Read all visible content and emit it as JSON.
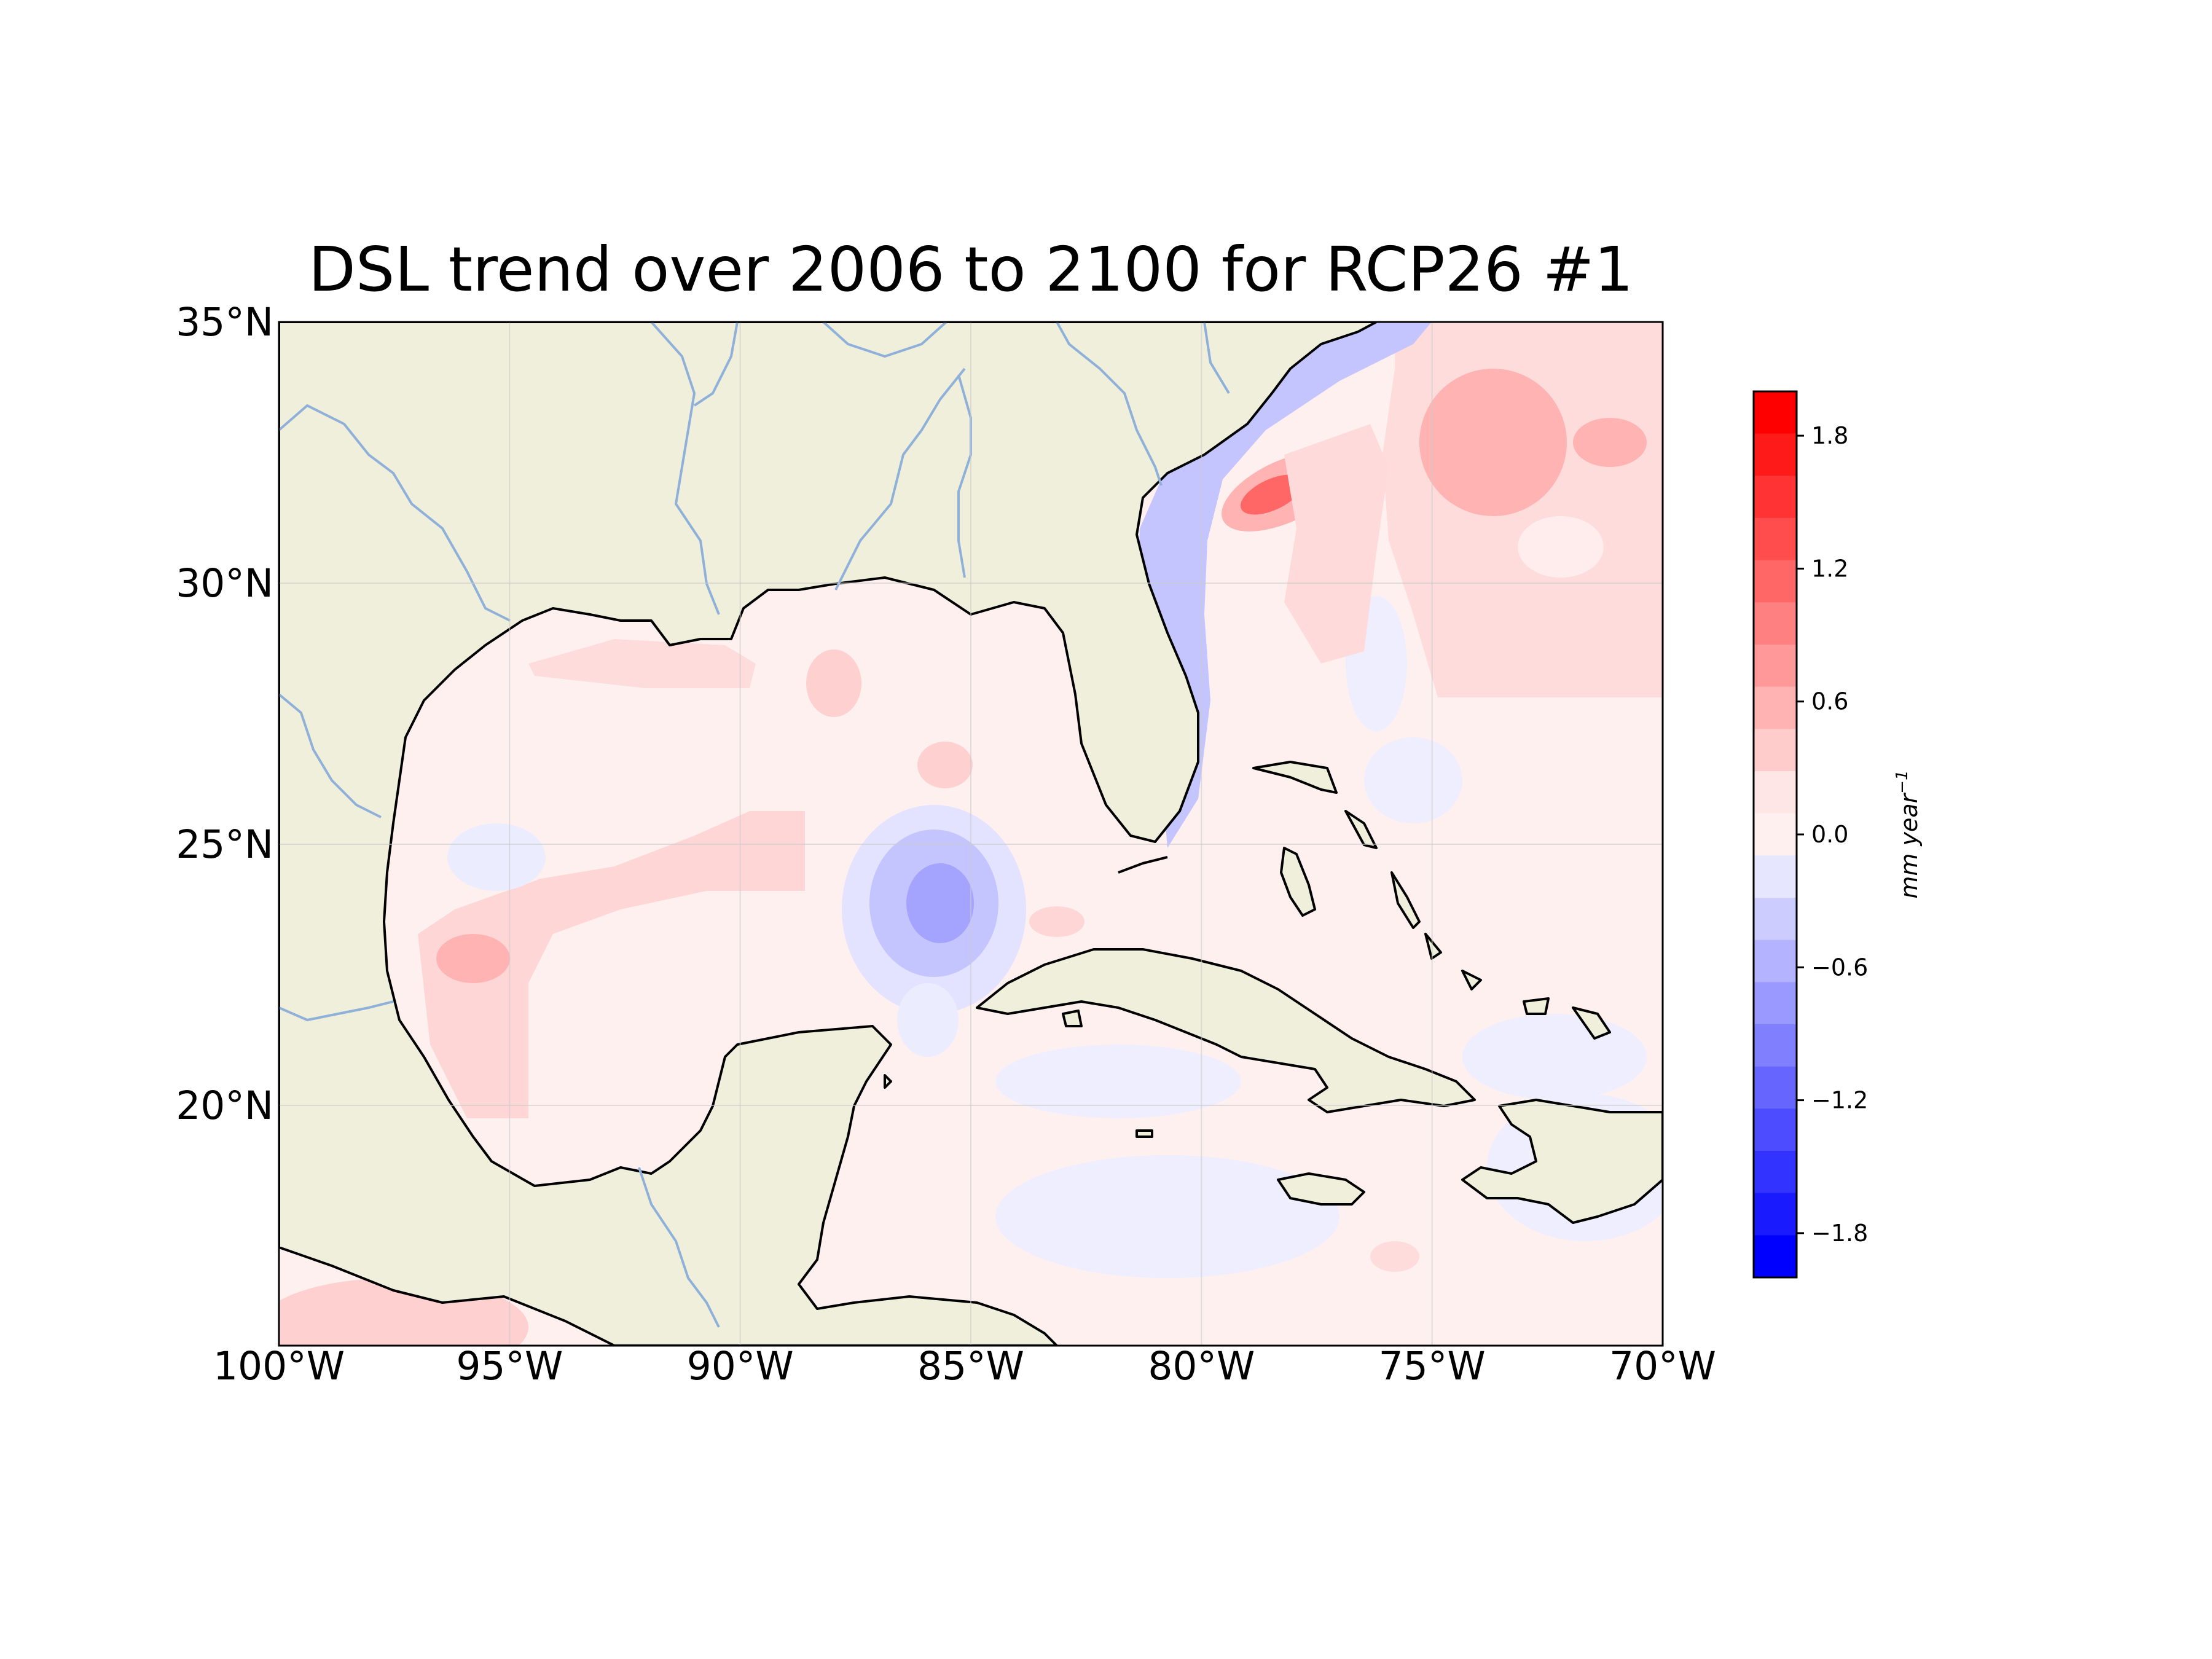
{
  "title": "DSL trend over 2006 to 2100 for RCP26 #1",
  "map": {
    "lon_range": [
      -100,
      -70
    ],
    "lat_range": [
      15.4,
      35
    ],
    "x_tick_labels": [
      "100°W",
      "95°W",
      "90°W",
      "85°W",
      "80°W",
      "75°W",
      "70°W"
    ],
    "x_tick_values": [
      -100,
      -95,
      -90,
      -85,
      -80,
      -75,
      -70
    ],
    "y_tick_labels": [
      "35°N",
      "30°N",
      "25°N",
      "20°N"
    ],
    "y_tick_values": [
      35,
      30,
      25,
      20
    ],
    "land_color": "#efefdb",
    "ocean_base_color": "#fff0f0",
    "river_color": "#8fb0d8",
    "coastline_color": "#000000",
    "gridlines": true
  },
  "colorbar": {
    "label": "mm year",
    "label_superscript": "−1",
    "range": [
      -2.0,
      2.0
    ],
    "step": 0.2,
    "tick_values": [
      1.8,
      1.2,
      0.6,
      0.0,
      -0.6,
      -1.2,
      -1.8
    ],
    "tick_labels": [
      "1.8",
      "1.2",
      "0.6",
      "0.0",
      "−0.6",
      "−1.2",
      "−1.8"
    ],
    "colors_top_to_bottom": [
      "#ff0000",
      "#ff1a1a",
      "#ff3333",
      "#ff4d4d",
      "#ff6666",
      "#ff8080",
      "#ff9999",
      "#ffb3b3",
      "#ffcccc",
      "#ffe6e6",
      "#fff0f0",
      "#e6e6ff",
      "#ccccff",
      "#b3b3ff",
      "#9999ff",
      "#8080ff",
      "#6666ff",
      "#4d4dff",
      "#3333ff",
      "#1a1aff",
      "#0000ff"
    ]
  },
  "chart_data": {
    "type": "heatmap",
    "title": "DSL trend over 2006 to 2100 for RCP26 #1",
    "xlabel": "",
    "ylabel": "",
    "xlim": [
      -100,
      -70
    ],
    "ylim": [
      15.4,
      35
    ],
    "colorbar_label": "mm year^-1",
    "value_range": [
      -2.0,
      2.0
    ],
    "features": [
      {
        "lon": -87.5,
        "lat": 28.7,
        "value": 0.3
      },
      {
        "lon": -91.5,
        "lat": 29.1,
        "value": 0.3
      },
      {
        "lon": -85.6,
        "lat": 26.1,
        "value": 0.3
      },
      {
        "lon": -90.0,
        "lat": 25.0,
        "value": 0.3
      },
      {
        "lon": -95.0,
        "lat": 23.3,
        "value": 0.4
      },
      {
        "lon": -95.0,
        "lat": 25.0,
        "value": -0.1
      },
      {
        "lon": -85.3,
        "lat": 24.2,
        "value": -0.6
      },
      {
        "lon": -85.0,
        "lat": 22.0,
        "value": -0.2
      },
      {
        "lon": -81.5,
        "lat": 30.0,
        "value": -0.4
      },
      {
        "lon": -79.8,
        "lat": 28.0,
        "value": -0.4
      },
      {
        "lon": -78.0,
        "lat": 32.0,
        "value": 1.0
      },
      {
        "lon": -77.3,
        "lat": 30.2,
        "value": 0.5
      },
      {
        "lon": -73.5,
        "lat": 32.6,
        "value": 0.6
      },
      {
        "lon": -72.0,
        "lat": 29.0,
        "value": 0.3
      },
      {
        "lon": -75.5,
        "lat": 28.0,
        "value": -0.1
      },
      {
        "lon": -80.0,
        "lat": 20.3,
        "value": -0.1
      },
      {
        "lon": -71.5,
        "lat": 17.8,
        "value": -0.2
      },
      {
        "lon": -96.5,
        "lat": 15.7,
        "value": 0.4
      }
    ]
  }
}
